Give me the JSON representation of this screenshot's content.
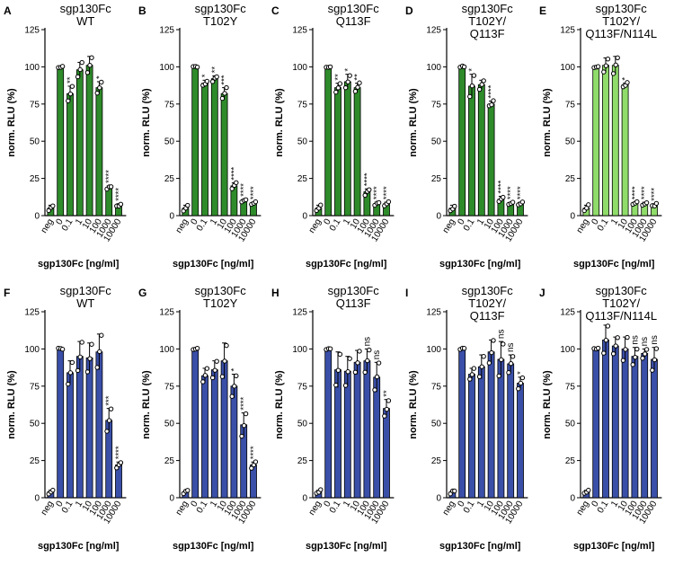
{
  "figure": {
    "y_ticks": [
      "0",
      "25",
      "50",
      "75",
      "100",
      "125"
    ],
    "categories": [
      "neg",
      "0",
      "0.1",
      "1",
      "10",
      "100",
      "1000",
      "10000"
    ]
  },
  "colors": {
    "top_bar": "#2e8b2a",
    "top_bar_light": "#8fdc6a",
    "bottom_bar": "#3a4fa8",
    "axis": "#000000"
  },
  "chart_data": [
    {
      "type": "bar",
      "letter": "A",
      "title": [
        "sgp130Fc",
        "WT"
      ],
      "color": "#2e8b2a",
      "ylabel": "norm. RLU (%)",
      "xlabel": "sgp130Fc [ng/ml]",
      "ylim": [
        0,
        125
      ],
      "categories": [
        "neg",
        "0",
        "0.1",
        "1",
        "10",
        "100",
        "1000",
        "10000"
      ],
      "values": [
        5,
        100,
        82,
        98,
        101,
        86,
        19,
        7
      ],
      "errors": [
        2,
        0,
        5,
        5,
        6,
        4,
        1,
        1
      ],
      "significance": [
        "",
        "",
        "**",
        "",
        "",
        "*",
        "****",
        "****"
      ]
    },
    {
      "type": "bar",
      "letter": "B",
      "title": [
        "sgp130Fc",
        "T102Y"
      ],
      "color": "#2e8b2a",
      "ylabel": "norm. RLU (%)",
      "xlabel": "sgp130Fc [ng/ml]",
      "ylim": [
        0,
        125
      ],
      "categories": [
        "neg",
        "0",
        "0.1",
        "1",
        "10",
        "100",
        "1000",
        "10000"
      ],
      "values": [
        5,
        100,
        89,
        92,
        82,
        20,
        10,
        8
      ],
      "errors": [
        2,
        0,
        2,
        2,
        4,
        2,
        1,
        1
      ],
      "significance": [
        "",
        "",
        "*",
        "**",
        "***",
        "****",
        "****",
        "****"
      ]
    },
    {
      "type": "bar",
      "letter": "C",
      "title": [
        "sgp130Fc",
        "Q113F"
      ],
      "color": "#2e8b2a",
      "ylabel": "norm. RLU (%)",
      "xlabel": "sgp130Fc [ng/ml]",
      "ylim": [
        0,
        125
      ],
      "categories": [
        "neg",
        "0",
        "0.1",
        "1",
        "10",
        "100",
        "1000",
        "10000"
      ],
      "values": [
        5,
        100,
        86,
        90,
        86,
        16,
        8,
        8
      ],
      "errors": [
        2,
        0,
        3,
        5,
        3,
        2,
        1,
        1
      ],
      "significance": [
        "",
        "",
        "**",
        "*",
        "**",
        "****",
        "****",
        "****"
      ]
    },
    {
      "type": "bar",
      "letter": "D",
      "title": [
        "sgp130Fc",
        "T102Y/",
        "Q113F"
      ],
      "color": "#2e8b2a",
      "ylabel": "norm. RLU (%)",
      "xlabel": "sgp130Fc [ng/ml]",
      "ylim": [
        0,
        125
      ],
      "categories": [
        "neg",
        "0",
        "0.1",
        "1",
        "10",
        "100",
        "1000",
        "10000"
      ],
      "values": [
        5,
        100,
        87,
        88,
        75,
        11,
        8,
        8
      ],
      "errors": [
        2,
        0,
        8,
        3,
        2,
        2,
        1,
        1
      ],
      "significance": [
        "",
        "",
        "*",
        "",
        "****",
        "****",
        "****",
        "****"
      ]
    },
    {
      "type": "bar",
      "letter": "E",
      "title": [
        "sgp130Fc",
        "T102Y/",
        "Q113F/N114L"
      ],
      "color": "#8fdc6a",
      "ylabel": "norm. RLU (%)",
      "xlabel": "sgp130Fc [ng/ml]",
      "ylim": [
        0,
        125
      ],
      "categories": [
        "neg",
        "0",
        "0.1",
        "1",
        "10",
        "100",
        "1000",
        "10000"
      ],
      "values": [
        5,
        100,
        101,
        101,
        88,
        8,
        8,
        7
      ],
      "errors": [
        2,
        0,
        5,
        6,
        1,
        1,
        1,
        1
      ],
      "significance": [
        "",
        "",
        "",
        "",
        "*",
        "****",
        "****",
        "****"
      ]
    },
    {
      "type": "bar",
      "letter": "F",
      "title": [
        "sgp130Fc",
        "WT"
      ],
      "color": "#3a4fa8",
      "ylabel": "norm. RLU (%)",
      "xlabel": "sgp130Fc [ng/ml]",
      "ylim": [
        0,
        125
      ],
      "categories": [
        "neg",
        "0",
        "0.1",
        "1",
        "10",
        "100",
        "1000",
        "10000"
      ],
      "values": [
        4,
        100,
        84,
        95,
        94,
        98,
        52,
        22
      ],
      "errors": [
        1,
        0,
        8,
        10,
        10,
        12,
        8,
        2
      ],
      "significance": [
        "",
        "",
        "",
        "",
        "",
        "",
        "***",
        "****"
      ]
    },
    {
      "type": "bar",
      "letter": "G",
      "title": [
        "sgp130Fc",
        "T102Y"
      ],
      "color": "#3a4fa8",
      "ylabel": "norm. RLU (%)",
      "xlabel": "sgp130Fc [ng/ml]",
      "ylim": [
        0,
        125
      ],
      "categories": [
        "neg",
        "0",
        "0.1",
        "1",
        "10",
        "100",
        "1000",
        "10000"
      ],
      "values": [
        4,
        100,
        82,
        86,
        92,
        75,
        49,
        22
      ],
      "errors": [
        1,
        0,
        5,
        6,
        12,
        8,
        8,
        2
      ],
      "significance": [
        "",
        "",
        "",
        "",
        "",
        "*",
        "****",
        "****"
      ]
    },
    {
      "type": "bar",
      "letter": "H",
      "title": [
        "sgp130Fc",
        "Q113F"
      ],
      "color": "#3a4fa8",
      "ylabel": "norm. RLU (%)",
      "xlabel": "sgp130Fc [ng/ml]",
      "ylim": [
        0,
        125
      ],
      "categories": [
        "neg",
        "0",
        "0.1",
        "1",
        "10",
        "100",
        "1000",
        "10000"
      ],
      "values": [
        4,
        100,
        86,
        85,
        91,
        92,
        81,
        60
      ],
      "errors": [
        1,
        0,
        12,
        10,
        8,
        8,
        10,
        6
      ],
      "significance": [
        "",
        "",
        "",
        "",
        "",
        "ns",
        "ns",
        "**"
      ]
    },
    {
      "type": "bar",
      "letter": "I",
      "title": [
        "sgp130Fc",
        "T102Y/",
        "Q113F"
      ],
      "color": "#3a4fa8",
      "ylabel": "norm. RLU (%)",
      "xlabel": "sgp130Fc [ng/ml]",
      "ylim": [
        0,
        125
      ],
      "categories": [
        "neg",
        "0",
        "0.1",
        "1",
        "10",
        "100",
        "1000",
        "10000"
      ],
      "values": [
        4,
        100,
        83,
        88,
        98,
        93,
        90,
        77
      ],
      "errors": [
        1,
        0,
        4,
        8,
        8,
        12,
        6,
        4
      ],
      "significance": [
        "",
        "",
        "",
        "",
        "",
        "ns",
        "ns",
        "*"
      ]
    },
    {
      "type": "bar",
      "letter": "J",
      "title": [
        "sgp130Fc",
        "T102Y/",
        "Q113F/N114L"
      ],
      "color": "#3a4fa8",
      "ylabel": "norm. RLU (%)",
      "xlabel": "sgp130Fc [ng/ml]",
      "ylim": [
        0,
        125
      ],
      "categories": [
        "neg",
        "0",
        "0.1",
        "1",
        "10",
        "100",
        "1000",
        "10000"
      ],
      "values": [
        4,
        100,
        106,
        102,
        100,
        95,
        97,
        93
      ],
      "errors": [
        1,
        0,
        10,
        6,
        8,
        6,
        3,
        8
      ],
      "significance": [
        "",
        "",
        "",
        "",
        "",
        "ns",
        "ns",
        "ns"
      ]
    }
  ]
}
